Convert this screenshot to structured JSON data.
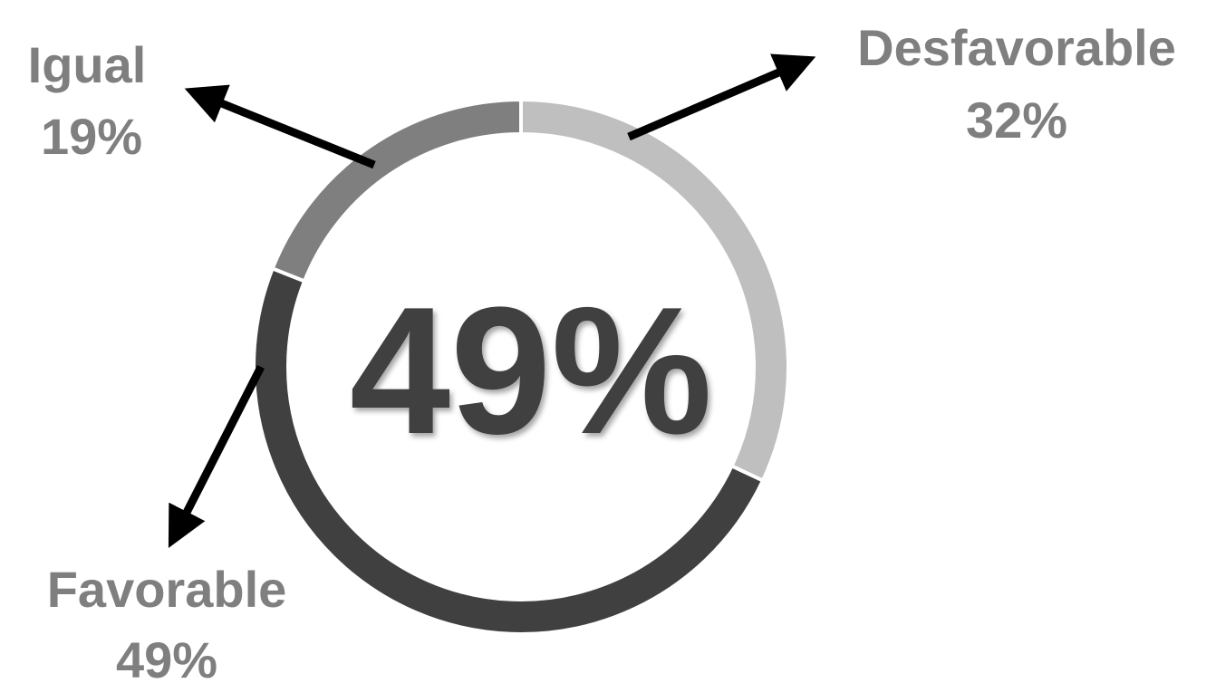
{
  "chart_data": {
    "type": "pie",
    "variant": "donut",
    "center_label": "49%",
    "slices": [
      {
        "name": "Desfavorable",
        "percent_label": "32%",
        "value": 32,
        "color": "#bfbfbf"
      },
      {
        "name": "Favorable",
        "percent_label": "49%",
        "value": 49,
        "color": "#404040"
      },
      {
        "name": "Igual",
        "percent_label": "19%",
        "value": 19,
        "color": "#7f7f7f"
      }
    ],
    "label_color": "#7f7f7f",
    "arrow_color": "#000000"
  }
}
